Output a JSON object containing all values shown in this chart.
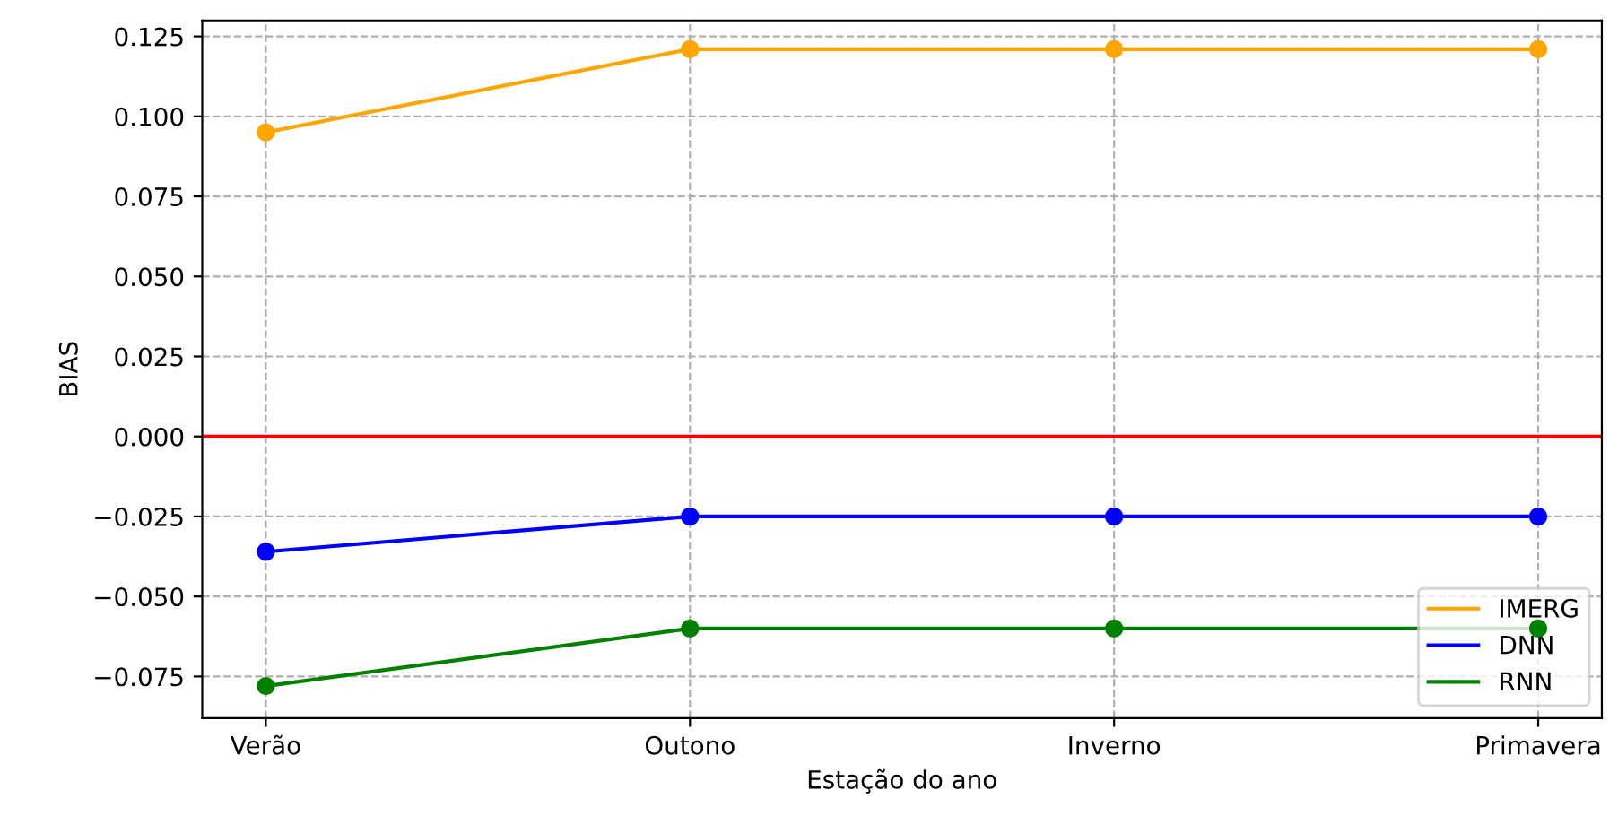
{
  "chart_data": {
    "type": "line",
    "xlabel": "Estação do ano",
    "ylabel": "BIAS",
    "categories": [
      "Verão",
      "Outono",
      "Inverno",
      "Primavera"
    ],
    "series": [
      {
        "name": "IMERG",
        "color": "#ffa500",
        "values": [
          0.095,
          0.121,
          0.121,
          0.121
        ]
      },
      {
        "name": "DNN",
        "color": "#0000ff",
        "values": [
          -0.036,
          -0.025,
          -0.025,
          -0.025
        ]
      },
      {
        "name": "RNN",
        "color": "#008000",
        "values": [
          -0.078,
          -0.06,
          -0.06,
          -0.06
        ]
      }
    ],
    "ylim": [
      -0.088,
      0.13
    ],
    "yticks": [
      {
        "value": -0.075,
        "label": "−0.075"
      },
      {
        "value": -0.05,
        "label": "−0.050"
      },
      {
        "value": -0.025,
        "label": "−0.025"
      },
      {
        "value": 0,
        "label": "0.000"
      },
      {
        "value": 0.025,
        "label": "0.025"
      },
      {
        "value": 0.05,
        "label": "0.050"
      },
      {
        "value": 0.075,
        "label": "0.075"
      },
      {
        "value": 0.1,
        "label": "0.100"
      },
      {
        "value": 0.125,
        "label": "0.125"
      }
    ],
    "ref_lines": [
      {
        "axis": "y",
        "value": 0,
        "color": "#ff0000"
      }
    ],
    "grid": true,
    "legend": "bottom right",
    "marker": "circle",
    "line_style": "solid"
  }
}
